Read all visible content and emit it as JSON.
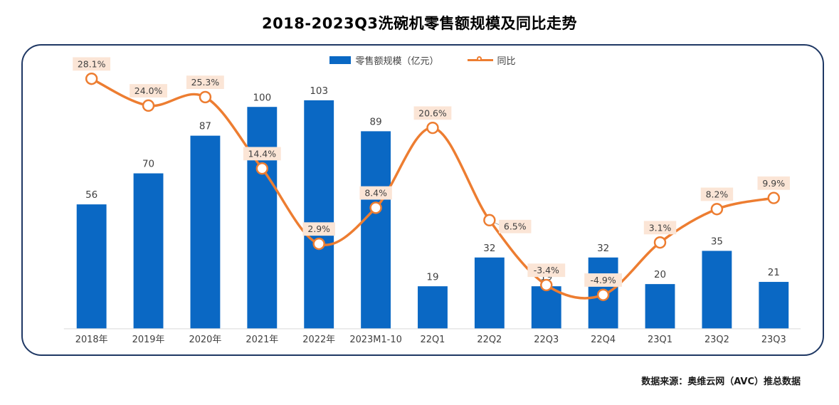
{
  "title": {
    "text": "2018-2023Q3洗碗机零售额规模及同比走势"
  },
  "legend": {
    "bar_label": "零售额规模（亿元）",
    "line_label": "同比"
  },
  "source": {
    "text": "数据来源：奥维云网（AVC）推总数据"
  },
  "colors": {
    "bar": "#0a68c4",
    "line": "#ED7D31",
    "marker_fill": "#ffffff",
    "pct_label_bg": "#FBE5D6",
    "pct_label_text": "#404040",
    "bar_label_text": "#404040",
    "tick_text": "#404040",
    "axis_line": "#D9D9D9",
    "card_border": "#1F3864",
    "leader_line": "#A6A6A6"
  },
  "chart_data": {
    "type": "bar+line combo",
    "title": "2018-2023Q3洗碗机零售额规模及同比走势",
    "categories": [
      "2018年",
      "2019年",
      "2020年",
      "2021年",
      "2022年",
      "2023M1-10",
      "22Q1",
      "22Q2",
      "22Q3",
      "22Q4",
      "23Q1",
      "23Q2",
      "23Q3"
    ],
    "series": [
      {
        "name": "零售额规模（亿元）",
        "type": "bar",
        "color": "#0a68c4",
        "values": [
          56,
          70,
          87,
          100,
          103,
          89,
          19,
          32,
          19,
          32,
          20,
          35,
          21
        ]
      },
      {
        "name": "同比",
        "type": "line",
        "color": "#ED7D31",
        "values": [
          28.1,
          24.0,
          25.3,
          14.4,
          2.9,
          8.4,
          20.6,
          6.5,
          -3.4,
          -4.9,
          3.1,
          8.2,
          9.9
        ],
        "labels": [
          "28.1%",
          "24.0%",
          "25.3%",
          "14.4%",
          "2.9%",
          "8.4%",
          "20.6%",
          "6.5%",
          "-3.4%",
          "-4.9%",
          "3.1%",
          "8.2%",
          "9.9%"
        ]
      }
    ],
    "line_label_callout_index": 7,
    "bar_axis_range_est": [
      0,
      130
    ],
    "line_axis_range_est_pct": [
      -14,
      33
    ],
    "grid": false,
    "legend_position": "top-center",
    "notes": "Percent labels sit in light-peach boxes above each marker; the 6.5% label is offset to the right of its marker with a gray leader line. The 22Q3 bar label is partially hidden behind the -3.4% label."
  }
}
